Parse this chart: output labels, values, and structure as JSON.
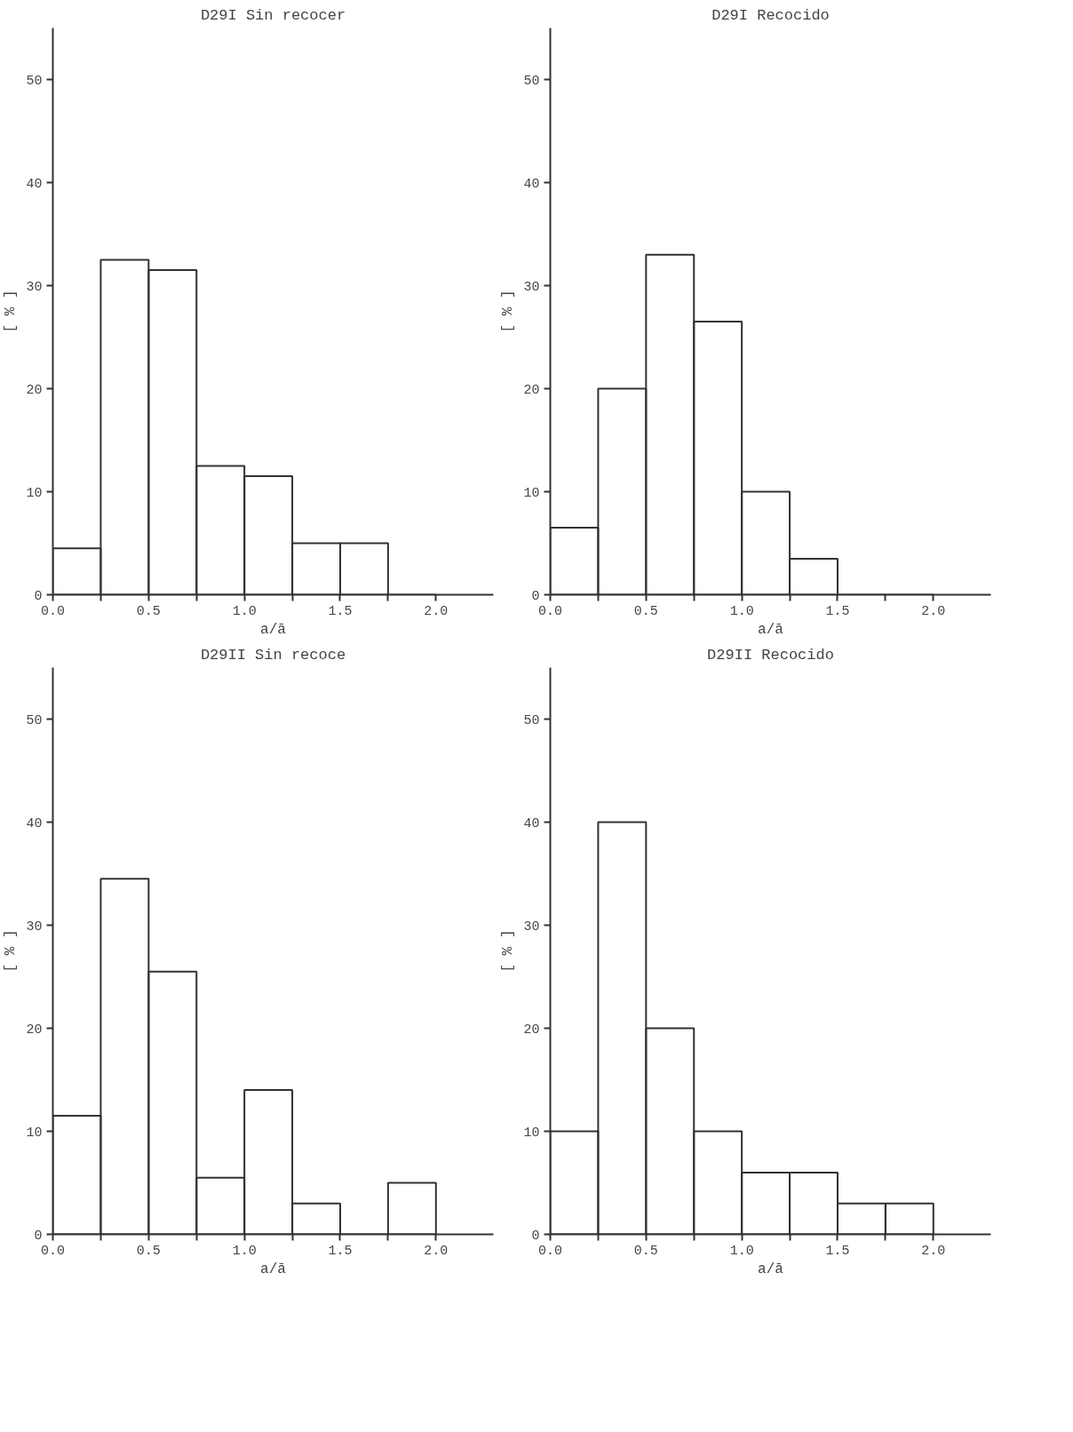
{
  "chart_data": [
    {
      "type": "histogram",
      "title": "D29I Sin recocer",
      "xlabel": "a/ā",
      "ylabel": "[ % ]",
      "color": "#2e3430",
      "bins": [
        0,
        0.25,
        0.5,
        0.75,
        1.0,
        1.25,
        1.5,
        1.75,
        2.0
      ],
      "values": [
        4.5,
        32.5,
        31.5,
        12.5,
        11.5,
        5,
        5,
        0
      ],
      "xlim": [
        0,
        2.3
      ],
      "ylim": [
        0,
        55
      ],
      "xticks": [
        {
          "value": 0,
          "label": "0.0"
        },
        {
          "value": 0.25,
          "label": null
        },
        {
          "value": 0.5,
          "label": "0.5"
        },
        {
          "value": 0.75,
          "label": null
        },
        {
          "value": 1.0,
          "label": "1.0"
        },
        {
          "value": 1.25,
          "label": null
        },
        {
          "value": 1.5,
          "label": "1.5"
        },
        {
          "value": 1.75,
          "label": null
        },
        {
          "value": 2.0,
          "label": "2.0"
        }
      ],
      "yticks": [
        0,
        10,
        20,
        30,
        40,
        50
      ]
    },
    {
      "type": "histogram",
      "title": "D29I Recocido",
      "xlabel": "a/ā",
      "ylabel": "[ % ]",
      "color": "#2e3430",
      "bins": [
        0,
        0.25,
        0.5,
        0.75,
        1.0,
        1.25,
        1.5,
        1.75,
        2.0
      ],
      "values": [
        6.5,
        20,
        33,
        26.5,
        10,
        3.5,
        0,
        0
      ],
      "xlim": [
        0,
        2.3
      ],
      "ylim": [
        0,
        55
      ],
      "xticks": [
        {
          "value": 0,
          "label": "0.0"
        },
        {
          "value": 0.25,
          "label": null
        },
        {
          "value": 0.5,
          "label": "0.5"
        },
        {
          "value": 0.75,
          "label": null
        },
        {
          "value": 1.0,
          "label": "1.0"
        },
        {
          "value": 1.25,
          "label": null
        },
        {
          "value": 1.5,
          "label": "1.5"
        },
        {
          "value": 1.75,
          "label": null
        },
        {
          "value": 2.0,
          "label": "2.0"
        }
      ],
      "yticks": [
        0,
        10,
        20,
        30,
        40,
        50
      ]
    },
    {
      "type": "histogram",
      "title": "D29II Sin recoce",
      "xlabel": "a/ā",
      "ylabel": "[ % ]",
      "color": "#2e3430",
      "bins": [
        0,
        0.25,
        0.5,
        0.75,
        1.0,
        1.25,
        1.5,
        1.75,
        2.0
      ],
      "values": [
        11.5,
        34.5,
        25.5,
        5.5,
        14,
        3,
        0,
        5
      ],
      "xlim": [
        0,
        2.3
      ],
      "ylim": [
        0,
        55
      ],
      "xticks": [
        {
          "value": 0,
          "label": "0.0"
        },
        {
          "value": 0.25,
          "label": null
        },
        {
          "value": 0.5,
          "label": "0.5"
        },
        {
          "value": 0.75,
          "label": null
        },
        {
          "value": 1.0,
          "label": "1.0"
        },
        {
          "value": 1.25,
          "label": null
        },
        {
          "value": 1.5,
          "label": "1.5"
        },
        {
          "value": 1.75,
          "label": null
        },
        {
          "value": 2.0,
          "label": "2.0"
        }
      ],
      "yticks": [
        0,
        10,
        20,
        30,
        40,
        50
      ]
    },
    {
      "type": "histogram",
      "title": "D29II Recocido",
      "xlabel": "a/ā",
      "ylabel": "[ % ]",
      "color": "#2e3430",
      "bins": [
        0,
        0.25,
        0.5,
        0.75,
        1.0,
        1.25,
        1.5,
        1.75,
        2.0
      ],
      "values": [
        10,
        40,
        20,
        10,
        6,
        6,
        3,
        3
      ],
      "xlim": [
        0,
        2.3
      ],
      "ylim": [
        0,
        55
      ],
      "xticks": [
        {
          "value": 0,
          "label": "0.0"
        },
        {
          "value": 0.25,
          "label": null
        },
        {
          "value": 0.5,
          "label": "0.5"
        },
        {
          "value": 0.75,
          "label": null
        },
        {
          "value": 1.0,
          "label": "1.0"
        },
        {
          "value": 1.25,
          "label": null
        },
        {
          "value": 1.5,
          "label": "1.5"
        },
        {
          "value": 1.75,
          "label": null
        },
        {
          "value": 2.0,
          "label": "2.0"
        }
      ],
      "yticks": [
        0,
        10,
        20,
        30,
        40,
        50
      ]
    }
  ]
}
